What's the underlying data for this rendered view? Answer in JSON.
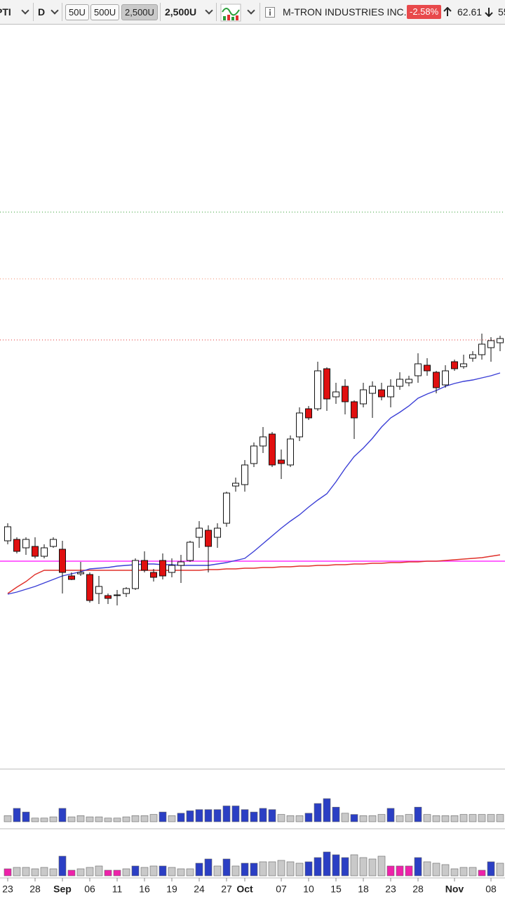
{
  "toolbar": {
    "symbol": "PTI",
    "period": "D",
    "buttons": [
      "50U",
      "500U",
      "2,500U"
    ],
    "selected_unit": "2,500U",
    "company": "M-TRON INDUSTRIES INC.",
    "change": "-2.58%",
    "high": "62.61",
    "low": "55"
  },
  "chart_data": {
    "type": "candlestick",
    "categories": [
      "23",
      null,
      null,
      "28",
      null,
      null,
      "Sep",
      null,
      null,
      "06",
      null,
      null,
      "11",
      null,
      null,
      "16",
      null,
      null,
      "19",
      null,
      null,
      "24",
      null,
      null,
      "27",
      null,
      "Oct",
      null,
      null,
      null,
      "07",
      null,
      null,
      "10",
      null,
      null,
      "15",
      null,
      null,
      "18",
      null,
      null,
      "23",
      null,
      null,
      "28",
      null,
      null,
      null,
      "Nov",
      null,
      null,
      null,
      "08",
      null
    ],
    "open": [
      51.5,
      51.6,
      51,
      51.1,
      50.4,
      51.1,
      50.9,
      49,
      49.15,
      49.1,
      47.75,
      47.6,
      47.6,
      47.75,
      48.1,
      50.1,
      49.25,
      50.1,
      49.25,
      49.75,
      50.1,
      51.75,
      52.25,
      51.75,
      52.75,
      55.4,
      55.5,
      57,
      58.25,
      59.1,
      57.25,
      56.9,
      58.9,
      60.9,
      60.9,
      63.75,
      61.75,
      62.5,
      61.4,
      61.25,
      62,
      62.25,
      61.75,
      62.5,
      62.75,
      63.25,
      64,
      63.5,
      62.6,
      64.25,
      63.9,
      64.5,
      64.75,
      65.25,
      65.6
    ],
    "high": [
      52.75,
      51.75,
      51.75,
      51.75,
      51.25,
      51.75,
      51.5,
      49.25,
      50,
      49.25,
      49,
      47.75,
      48,
      48.2,
      50.25,
      50.75,
      49.5,
      50.6,
      50.25,
      50.5,
      51.5,
      52.9,
      52.6,
      52.75,
      55,
      56,
      57.25,
      58.5,
      59.6,
      59.25,
      58,
      59,
      61,
      61.1,
      64.25,
      63.85,
      62.75,
      63,
      61.5,
      62.75,
      62.85,
      62.75,
      63,
      63.5,
      63.25,
      64.85,
      64.5,
      63.6,
      64,
      64.4,
      64.75,
      65,
      66.25,
      66,
      66.1
    ],
    "low": [
      51.25,
      50.6,
      50.5,
      50.25,
      50.25,
      51,
      47.75,
      48.7,
      49,
      47.1,
      47,
      47,
      46.9,
      47.5,
      48,
      49.25,
      48.6,
      48.75,
      48.9,
      48.5,
      50,
      51,
      49.25,
      51,
      52.5,
      55,
      55,
      56.75,
      57.75,
      56.75,
      55.9,
      56.75,
      58.6,
      60.1,
      60.75,
      60.75,
      61.25,
      60.5,
      58.75,
      61,
      60.25,
      61.5,
      61,
      62.25,
      62.5,
      62.75,
      63.25,
      62,
      62.4,
      63.6,
      63.75,
      64.25,
      64.4,
      64.25,
      65
    ],
    "close": [
      52.5,
      50.75,
      51.6,
      50.4,
      51,
      51.6,
      49.25,
      48.75,
      49.25,
      47.25,
      48.25,
      47.4,
      47.65,
      48.1,
      50.1,
      49.4,
      48.9,
      49,
      49.75,
      50,
      51.4,
      52.4,
      51.1,
      52.4,
      54.9,
      55.6,
      56.9,
      58.25,
      58.9,
      56.9,
      57,
      58.75,
      60.6,
      60.25,
      63.6,
      61.6,
      62.1,
      61.4,
      60.25,
      62.25,
      62.5,
      61.75,
      62.5,
      63,
      63,
      64.1,
      63.6,
      62.4,
      63.6,
      63.75,
      64.1,
      64.75,
      65.5,
      65.75,
      65.9
    ],
    "up_color": "#ffffff",
    "down_color": "#e01010",
    "ylim": [
      35.25,
      88.25
    ],
    "overlays": [
      {
        "color": "#e0302a",
        "values": [
          47.75,
          48.2,
          48.6,
          49.1,
          49.4,
          49.4,
          49.4,
          49.4,
          49.4,
          49.4,
          49.4,
          49.4,
          49.4,
          49.4,
          49.4,
          49.4,
          49.4,
          49.4,
          49.4,
          49.4,
          49.4,
          49.4,
          49.45,
          49.45,
          49.5,
          49.5,
          49.55,
          49.55,
          49.6,
          49.6,
          49.65,
          49.65,
          49.7,
          49.7,
          49.75,
          49.75,
          49.8,
          49.8,
          49.85,
          49.85,
          49.9,
          49.9,
          49.95,
          49.95,
          50,
          50,
          50.05,
          50.05,
          50.1,
          50.15,
          50.2,
          50.25,
          50.3,
          50.4,
          50.5
        ]
      },
      {
        "color": "#3b3fd6",
        "values": [
          47.7,
          47.85,
          48.05,
          48.25,
          48.5,
          48.75,
          49,
          49.15,
          49.3,
          49.5,
          49.55,
          49.6,
          49.7,
          49.75,
          49.8,
          49.85,
          49.85,
          49.8,
          49.8,
          49.75,
          49.75,
          49.75,
          49.75,
          49.85,
          49.95,
          50.1,
          50.25,
          50.75,
          51.3,
          51.85,
          52.4,
          52.9,
          53.35,
          53.9,
          54.4,
          54.85,
          55.7,
          56.65,
          57.5,
          58.1,
          58.8,
          59.6,
          60.25,
          60.65,
          61.1,
          61.65,
          61.95,
          62.2,
          62.5,
          62.7,
          62.85,
          62.95,
          63.1,
          63.25,
          63.45
        ]
      }
    ],
    "hlines": [
      {
        "value": 74.9,
        "color": "#2f9e2f",
        "style": "dotted"
      },
      {
        "value": 70.15,
        "color": "#f08a6a",
        "style": "dotted"
      },
      {
        "value": 65.8,
        "color": "#e03030",
        "style": "dotted"
      },
      {
        "value": 50.05,
        "color": "#ff33ff",
        "style": "solid"
      }
    ],
    "volume_panels": [
      {
        "vlim": [
          0,
          75
        ],
        "values": [
          10,
          22,
          16,
          6,
          6,
          8,
          22,
          8,
          10,
          8,
          8,
          6,
          6,
          8,
          10,
          10,
          12,
          16,
          10,
          14,
          18,
          20,
          20,
          20,
          26,
          26,
          20,
          16,
          22,
          20,
          12,
          10,
          10,
          14,
          30,
          38,
          24,
          14,
          12,
          10,
          10,
          12,
          22,
          10,
          12,
          24,
          12,
          10,
          10,
          10,
          12,
          12,
          12,
          12,
          12
        ],
        "colors": [
          "#c9c9c9",
          "#2b3fc4",
          "#2b3fc4",
          "#c9c9c9",
          "#c9c9c9",
          "#c9c9c9",
          "#2b3fc4",
          "#c9c9c9",
          "#c9c9c9",
          "#c9c9c9",
          "#c9c9c9",
          "#c9c9c9",
          "#c9c9c9",
          "#c9c9c9",
          "#c9c9c9",
          "#c9c9c9",
          "#c9c9c9",
          "#2b3fc4",
          "#c9c9c9",
          "#2b3fc4",
          "#2b3fc4",
          "#2b3fc4",
          "#2b3fc4",
          "#2b3fc4",
          "#2b3fc4",
          "#2b3fc4",
          "#2b3fc4",
          "#2b3fc4",
          "#2b3fc4",
          "#2b3fc4",
          "#c9c9c9",
          "#c9c9c9",
          "#c9c9c9",
          "#2b3fc4",
          "#2b3fc4",
          "#2b3fc4",
          "#2b3fc4",
          "#c9c9c9",
          "#2b3fc4",
          "#c9c9c9",
          "#c9c9c9",
          "#c9c9c9",
          "#2b3fc4",
          "#c9c9c9",
          "#c9c9c9",
          "#2b3fc4",
          "#c9c9c9",
          "#c9c9c9",
          "#c9c9c9",
          "#c9c9c9",
          "#c9c9c9",
          "#c9c9c9",
          "#c9c9c9",
          "#c9c9c9",
          "#c9c9c9"
        ]
      },
      {
        "vlim": [
          0,
          65
        ],
        "values": [
          10,
          12,
          12,
          10,
          12,
          10,
          28,
          8,
          10,
          12,
          14,
          8,
          8,
          10,
          14,
          12,
          14,
          14,
          12,
          10,
          10,
          18,
          24,
          14,
          24,
          14,
          18,
          18,
          20,
          20,
          22,
          20,
          18,
          20,
          26,
          34,
          30,
          26,
          30,
          26,
          24,
          28,
          14,
          14,
          14,
          26,
          20,
          18,
          16,
          10,
          12,
          12,
          8,
          20,
          18
        ],
        "colors": [
          "#ee22aa",
          "#c9c9c9",
          "#c9c9c9",
          "#c9c9c9",
          "#c9c9c9",
          "#c9c9c9",
          "#2b3fc4",
          "#ee22aa",
          "#c9c9c9",
          "#c9c9c9",
          "#c9c9c9",
          "#ee22aa",
          "#ee22aa",
          "#c9c9c9",
          "#2b3fc4",
          "#c9c9c9",
          "#c9c9c9",
          "#2b3fc4",
          "#c9c9c9",
          "#c9c9c9",
          "#c9c9c9",
          "#2b3fc4",
          "#2b3fc4",
          "#c9c9c9",
          "#2b3fc4",
          "#c9c9c9",
          "#2b3fc4",
          "#2b3fc4",
          "#c9c9c9",
          "#c9c9c9",
          "#c9c9c9",
          "#c9c9c9",
          "#c9c9c9",
          "#2b3fc4",
          "#2b3fc4",
          "#2b3fc4",
          "#2b3fc4",
          "#2b3fc4",
          "#c9c9c9",
          "#c9c9c9",
          "#c9c9c9",
          "#c9c9c9",
          "#ee22aa",
          "#ee22aa",
          "#ee22aa",
          "#2b3fc4",
          "#c9c9c9",
          "#c9c9c9",
          "#c9c9c9",
          "#c9c9c9",
          "#c9c9c9",
          "#c9c9c9",
          "#ee22aa",
          "#2b3fc4",
          "#c9c9c9"
        ]
      }
    ]
  }
}
